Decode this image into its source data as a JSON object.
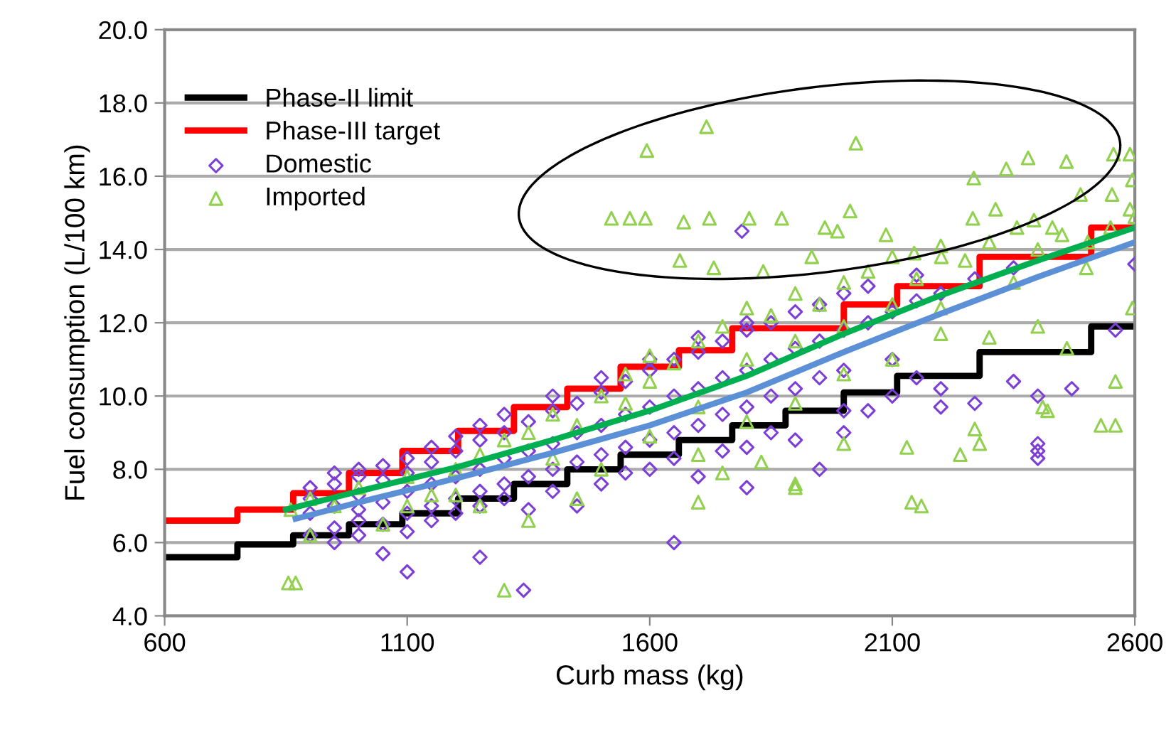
{
  "chart_data": {
    "type": "scatter",
    "xlabel": "Curb mass (kg)",
    "ylabel": "Fuel consumption (L/100 km)",
    "xlim": [
      600,
      2600
    ],
    "xticks": [
      600,
      1100,
      1600,
      2100,
      2600
    ],
    "ylim": [
      4,
      20
    ],
    "yticks": [
      {
        "value": 4,
        "label": "4.0"
      },
      {
        "value": 6,
        "label": "6.0"
      },
      {
        "value": 8,
        "label": "8.0"
      },
      {
        "value": 10,
        "label": "10.0"
      },
      {
        "value": 12,
        "label": "12.0"
      },
      {
        "value": 14,
        "label": "14.0"
      },
      {
        "value": 16,
        "label": "16.0"
      },
      {
        "value": 18,
        "label": "18.0"
      },
      {
        "value": 20,
        "label": "20.0"
      }
    ],
    "grid": "y",
    "legend": "top left",
    "series": [
      {
        "name": "Phase-II limit",
        "type": "step",
        "color": "#000000",
        "x": [
          600,
          750,
          865,
          980,
          1090,
          1205,
          1320,
          1430,
          1540,
          1660,
          1770,
          1880,
          2000,
          2110,
          2280,
          2510,
          2600
        ],
        "values": [
          5.6,
          5.95,
          6.2,
          6.5,
          6.8,
          7.2,
          7.6,
          8.0,
          8.4,
          8.8,
          9.2,
          9.6,
          10.1,
          10.55,
          11.2,
          11.9,
          11.9
        ]
      },
      {
        "name": "Phase-III target",
        "type": "step",
        "color": "#ff0000",
        "x": [
          600,
          750,
          865,
          980,
          1090,
          1205,
          1320,
          1430,
          1540,
          1660,
          1770,
          1880,
          2000,
          2110,
          2280,
          2510,
          2600
        ],
        "values": [
          6.6,
          6.9,
          7.35,
          7.9,
          8.5,
          9.05,
          9.7,
          10.2,
          10.8,
          11.25,
          11.85,
          11.85,
          12.5,
          13.0,
          13.8,
          14.6,
          14.6
        ]
      },
      {
        "name": "Domestic",
        "marker": "diamond",
        "color": "#7b3fd6",
        "x": [
          900,
          900,
          900,
          900,
          950,
          950,
          950,
          950,
          950,
          1000,
          1000,
          1000,
          1000,
          1000,
          1000,
          1050,
          1050,
          1050,
          1050,
          1050,
          1100,
          1100,
          1100,
          1100,
          1100,
          1100,
          1150,
          1150,
          1150,
          1150,
          1150,
          1200,
          1200,
          1200,
          1200,
          1200,
          1250,
          1250,
          1250,
          1250,
          1250,
          1250,
          1300,
          1300,
          1300,
          1300,
          1300,
          1340,
          1350,
          1350,
          1350,
          1350,
          1400,
          1400,
          1400,
          1400,
          1400,
          1450,
          1450,
          1450,
          1450,
          1500,
          1500,
          1500,
          1500,
          1500,
          1550,
          1550,
          1550,
          1550,
          1600,
          1600,
          1600,
          1600,
          1600,
          1650,
          1650,
          1650,
          1650,
          1650,
          1700,
          1700,
          1700,
          1700,
          1700,
          1750,
          1750,
          1750,
          1750,
          1790,
          1800,
          1800,
          1800,
          1800,
          1800,
          1800,
          1850,
          1850,
          1850,
          1850,
          1900,
          1900,
          1900,
          1900,
          1950,
          1950,
          1950,
          1950,
          2000,
          2000,
          2000,
          2000,
          2000,
          2050,
          2050,
          2050,
          2100,
          2100,
          2100,
          2150,
          2150,
          2150,
          2200,
          2200,
          2200,
          2270,
          2270,
          2350,
          2350,
          2400,
          2400,
          2400,
          2400,
          2470,
          2560,
          2600
        ],
        "values": [
          6.8,
          7.2,
          6.2,
          7.5,
          7.0,
          7.6,
          6.4,
          6.0,
          7.9,
          7.3,
          7.8,
          6.6,
          6.9,
          8.0,
          6.2,
          7.1,
          7.7,
          6.5,
          8.1,
          5.7,
          7.4,
          7.9,
          6.8,
          8.3,
          6.3,
          5.2,
          7.6,
          8.2,
          7.0,
          8.6,
          6.6,
          7.8,
          8.5,
          7.2,
          8.9,
          6.8,
          8.0,
          8.8,
          7.4,
          9.2,
          7.0,
          5.6,
          8.3,
          9.0,
          7.6,
          9.5,
          7.2,
          4.7,
          8.5,
          9.3,
          7.8,
          6.9,
          8.7,
          9.6,
          8.0,
          10.0,
          7.4,
          9.0,
          9.8,
          8.2,
          7.0,
          9.2,
          10.1,
          8.4,
          10.5,
          7.6,
          9.5,
          10.4,
          8.6,
          7.9,
          9.7,
          10.7,
          8.8,
          11.0,
          8.0,
          10.0,
          11.0,
          9.0,
          6.0,
          8.3,
          10.2,
          11.2,
          9.2,
          11.6,
          7.8,
          10.5,
          11.5,
          9.5,
          8.5,
          14.5,
          10.7,
          11.8,
          9.7,
          12.0,
          8.6,
          7.5,
          11.0,
          12.0,
          10.0,
          9.0,
          11.3,
          12.3,
          10.2,
          8.8,
          11.5,
          12.5,
          10.5,
          8.0,
          11.8,
          12.8,
          10.7,
          9.6,
          9.0,
          12.0,
          13.0,
          9.6,
          12.3,
          10.0,
          11.0,
          12.6,
          13.3,
          10.5,
          12.8,
          9.7,
          10.2,
          9.8,
          13.2,
          10.4,
          13.5,
          8.5,
          8.3,
          8.7,
          10.0,
          10.2,
          11.8,
          13.6
        ]
      },
      {
        "name": "Imported",
        "marker": "triangle",
        "color": "#92d050",
        "x": [
          1594,
          1717,
          2025,
          1521,
          1559,
          1591,
          1670,
          1723,
          1805,
          1872,
          1961,
          1987,
          2013,
          2268,
          2335,
          2380,
          2459,
          2556,
          2590,
          2266,
          2313,
          2392,
          2488,
          2553,
          2590,
          2595,
          2087,
          2145,
          2201,
          2357,
          2430,
          2503,
          1662,
          1732,
          1834,
          1934,
          2530,
          2560,
          2560,
          2595,
          2410,
          2420,
          2280,
          2240,
          2130,
          2140,
          2160,
          2270,
          1300,
          855,
          870,
          1350,
          1700,
          1900,
          1830,
          2000,
          1450,
          1200,
          900,
          1100,
          860,
          900,
          950,
          1000,
          1050,
          1100,
          1150,
          1200,
          1250,
          1300,
          1350,
          1400,
          1450,
          1500,
          1550,
          1550,
          1600,
          1600,
          1650,
          1700,
          1700,
          1750,
          1800,
          1800,
          1850,
          1900,
          1900,
          1950,
          2000,
          2000,
          2050,
          2100,
          2100,
          2150,
          2200,
          2200,
          2250,
          2300,
          2350,
          2400,
          2450,
          2500,
          2550,
          2600,
          1250,
          1400,
          1500,
          1600,
          1700,
          1800,
          1900,
          2000,
          2100,
          2200,
          2300,
          2400,
          2460,
          1750,
          1900
        ],
        "values": [
          16.7,
          17.35,
          16.9,
          14.85,
          14.85,
          14.85,
          14.75,
          14.85,
          14.85,
          14.85,
          14.6,
          14.5,
          15.05,
          15.95,
          16.2,
          16.5,
          16.4,
          16.6,
          16.6,
          14.85,
          15.1,
          14.8,
          15.5,
          15.5,
          15.1,
          15.9,
          14.4,
          13.9,
          13.8,
          14.6,
          14.6,
          14.2,
          13.7,
          13.5,
          13.4,
          13.8,
          9.2,
          9.2,
          10.4,
          12.4,
          9.7,
          9.6,
          8.7,
          8.4,
          8.6,
          7.1,
          7.0,
          9.1,
          4.7,
          4.9,
          4.9,
          6.6,
          7.1,
          7.5,
          8.2,
          8.7,
          7.2,
          7.3,
          6.2,
          7.0,
          6.9,
          7.2,
          7.0,
          7.5,
          6.5,
          7.8,
          7.3,
          8.0,
          8.4,
          8.8,
          9.0,
          9.5,
          9.2,
          10.0,
          9.8,
          10.6,
          10.4,
          11.1,
          10.9,
          11.5,
          9.7,
          11.9,
          11.0,
          12.4,
          12.2,
          11.5,
          12.8,
          12.5,
          11.9,
          13.1,
          13.4,
          12.5,
          13.8,
          13.2,
          12.4,
          14.1,
          13.7,
          14.2,
          13.1,
          14.0,
          14.4,
          13.5,
          14.6,
          14.9,
          7.0,
          8.3,
          8.0,
          8.9,
          8.4,
          9.3,
          9.8,
          10.6,
          11.0,
          11.7,
          11.6,
          11.9,
          11.3,
          7.9,
          7.6
        ]
      },
      {
        "type": "line",
        "color": "#5b8fd6",
        "x": [
          870,
          1000,
          1200,
          1400,
          1600,
          1800,
          2000,
          2200,
          2400,
          2600
        ],
        "values": [
          6.65,
          7.1,
          7.75,
          8.45,
          9.2,
          10.1,
          11.2,
          12.25,
          13.25,
          14.2
        ]
      },
      {
        "type": "line",
        "color": "#00b050",
        "x": [
          850,
          1000,
          1200,
          1400,
          1600,
          1800,
          2000,
          2200,
          2400,
          2600
        ],
        "values": [
          6.9,
          7.4,
          8.05,
          8.8,
          9.6,
          10.55,
          11.7,
          12.75,
          13.7,
          14.6
        ]
      }
    ]
  }
}
